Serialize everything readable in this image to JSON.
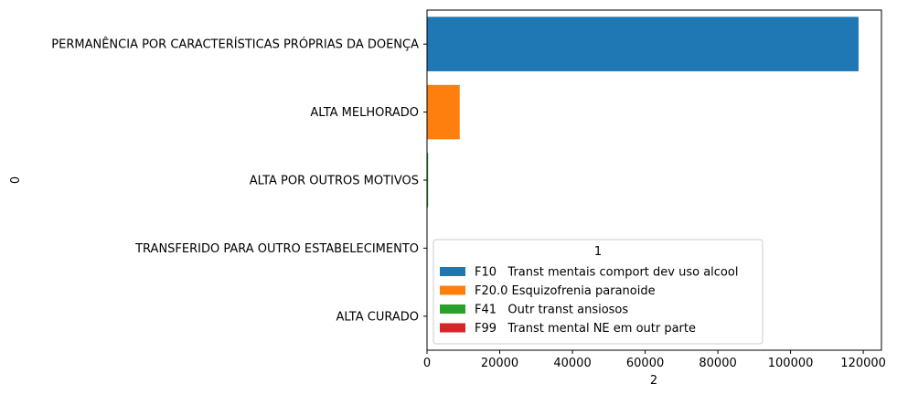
{
  "chart_data": {
    "type": "bar",
    "orientation": "horizontal",
    "title": "",
    "xlabel": "2",
    "ylabel": "0",
    "xlim": [
      0,
      125000
    ],
    "xticks": [
      0,
      20000,
      40000,
      60000,
      80000,
      100000,
      120000
    ],
    "xtick_labels": [
      "0",
      "20000",
      "40000",
      "60000",
      "80000",
      "100000",
      "120000"
    ],
    "categories": [
      "PERMANÊNCIA POR CARACTERÍSTICAS PRÓPRIAS DA DOENÇA",
      "ALTA MELHORADO",
      "ALTA POR OUTROS MOTIVOS",
      "TRANSFERIDO PARA OUTRO ESTABELECIMENTO",
      "ALTA CURADO"
    ],
    "series": [
      {
        "name": "F10   Transt mentais comport dev uso alcool",
        "color": "#1f77b4",
        "values": [
          118700,
          null,
          null,
          null,
          null
        ]
      },
      {
        "name": "F20.0 Esquizofrenia paranoide",
        "color": "#ff7f0e",
        "values": [
          null,
          9000,
          null,
          null,
          null
        ]
      },
      {
        "name": "F41   Outr transt ansiosos",
        "color": "#2ca02c",
        "values": [
          null,
          null,
          300,
          null,
          null
        ]
      },
      {
        "name": "F99   Transt mental NE em outr parte",
        "color": "#d62728",
        "values": [
          null,
          null,
          null,
          10,
          5
        ]
      }
    ],
    "legend": {
      "title": "1",
      "placement": "lower-right"
    },
    "grid": false
  }
}
